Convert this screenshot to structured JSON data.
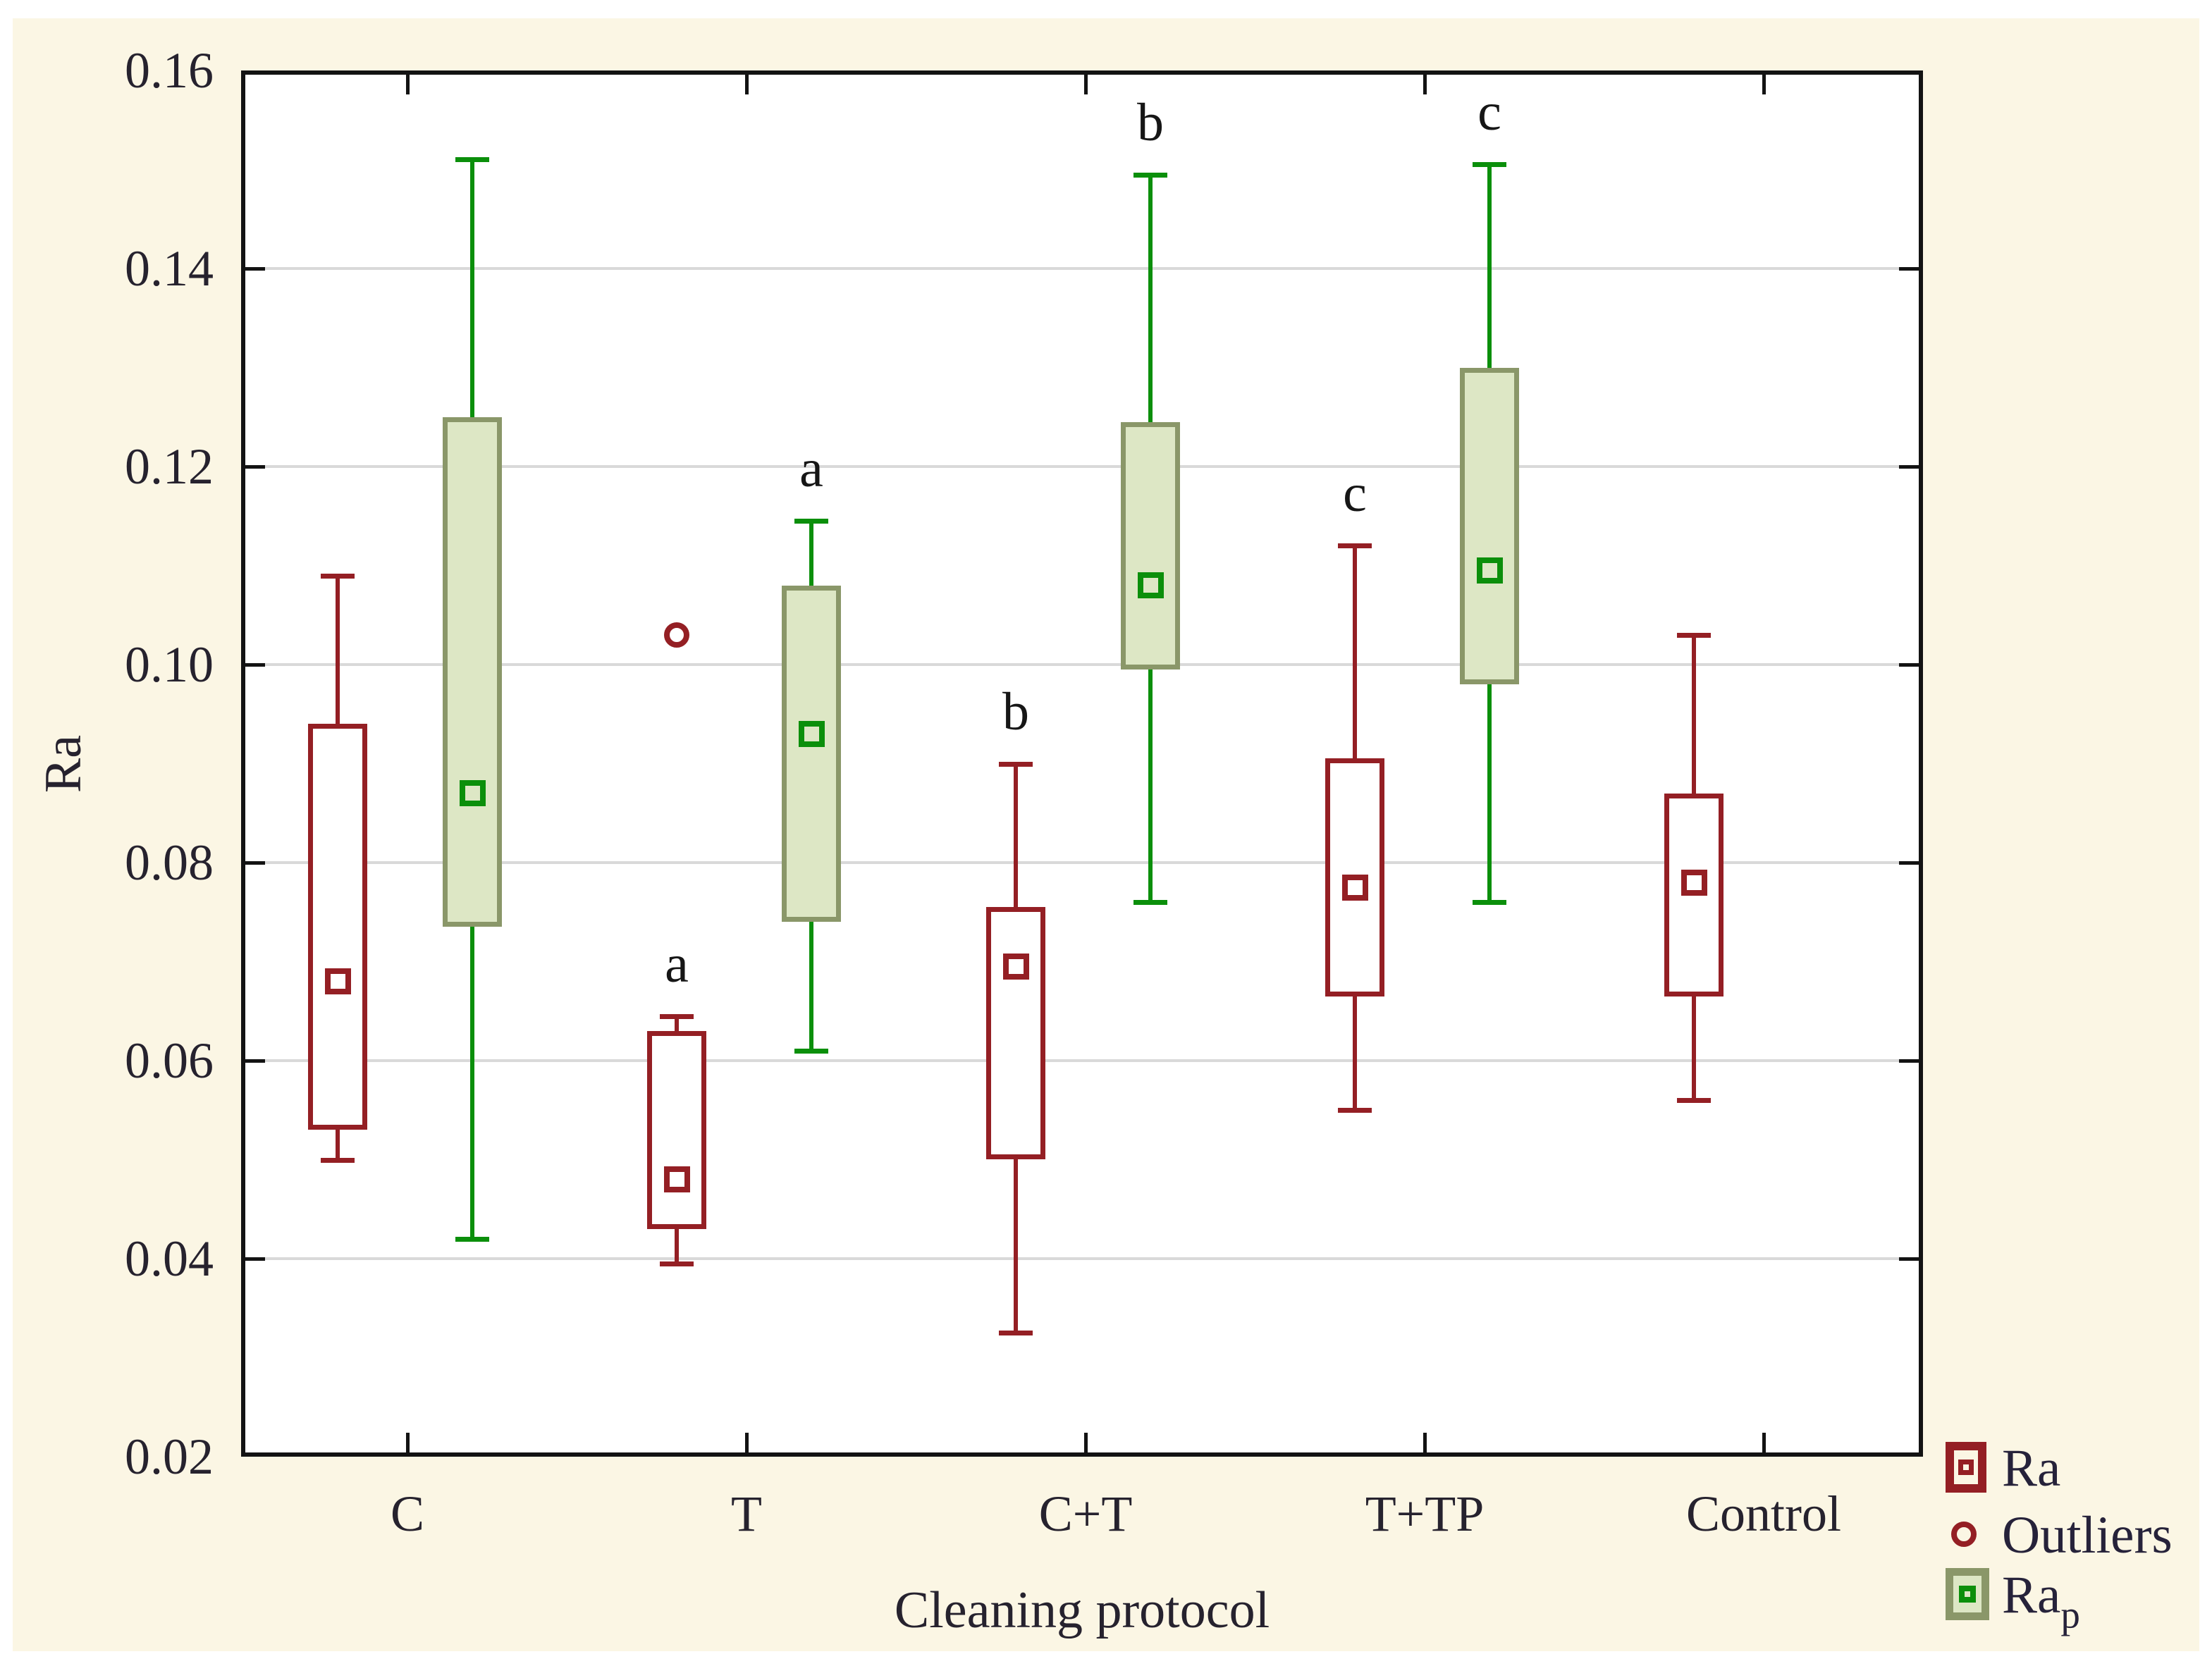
{
  "colors": {
    "maroon": "#941f24",
    "green_line": "#0b8f0b",
    "green_fill": "#dde7c5",
    "green_border": "#8a9769",
    "page_background": "#fbf6e4",
    "plot_background": "#ffffff",
    "gridline": "#d9d9d9",
    "axis_line": "#131313",
    "text": "#26222e",
    "sig_label_text": "#161616"
  },
  "chart_data": {
    "type": "boxplot",
    "title": "",
    "xlabel": "Cleaning protocol",
    "ylabel": "Ra",
    "ylim": [
      0.02,
      0.16
    ],
    "yticks": [
      "0.02",
      "0.04",
      "0.06",
      "0.08",
      "0.10",
      "0.12",
      "0.14",
      "0.16"
    ],
    "grid": "horizontal",
    "legend_position": "bottom-right",
    "categories": [
      "C",
      "T",
      "C+T",
      "T+TP",
      "Control"
    ],
    "series": [
      {
        "name": "Ra",
        "style": "open-maroon",
        "boxes": [
          {
            "category": "C",
            "whisker_low": 0.05,
            "q1": 0.053,
            "median": 0.068,
            "q3": 0.094,
            "whisker_high": 0.109,
            "group_label": ""
          },
          {
            "category": "T",
            "whisker_low": 0.0395,
            "q1": 0.043,
            "median": 0.048,
            "q3": 0.063,
            "whisker_high": 0.0645,
            "group_label": "a"
          },
          {
            "category": "C+T",
            "whisker_low": 0.0325,
            "q1": 0.05,
            "median": 0.0695,
            "q3": 0.0755,
            "whisker_high": 0.09,
            "group_label": "b"
          },
          {
            "category": "T+TP",
            "whisker_low": 0.055,
            "q1": 0.0665,
            "median": 0.0775,
            "q3": 0.0905,
            "whisker_high": 0.112,
            "group_label": "c"
          },
          {
            "category": "Control",
            "whisker_low": 0.056,
            "q1": 0.0665,
            "median": 0.078,
            "q3": 0.087,
            "whisker_high": 0.103,
            "group_label": ""
          }
        ]
      },
      {
        "name": "Rap",
        "style": "filled-green",
        "boxes": [
          {
            "category": "C",
            "whisker_low": 0.042,
            "q1": 0.0735,
            "median": 0.087,
            "q3": 0.125,
            "whisker_high": 0.151,
            "group_label": ""
          },
          {
            "category": "T",
            "whisker_low": 0.061,
            "q1": 0.074,
            "median": 0.093,
            "q3": 0.108,
            "whisker_high": 0.1145,
            "group_label": "a"
          },
          {
            "category": "C+T",
            "whisker_low": 0.076,
            "q1": 0.0995,
            "median": 0.108,
            "q3": 0.1245,
            "whisker_high": 0.1495,
            "group_label": "b"
          },
          {
            "category": "T+TP",
            "whisker_low": 0.076,
            "q1": 0.098,
            "median": 0.1095,
            "q3": 0.13,
            "whisker_high": 0.1505,
            "group_label": "c"
          }
        ]
      }
    ],
    "outliers": [
      {
        "series": "Ra",
        "category": "T",
        "value": 0.103
      }
    ],
    "legend": {
      "items": [
        {
          "label": "Ra",
          "sub": "",
          "marker": "box-maroon"
        },
        {
          "label": "Outliers",
          "sub": "",
          "marker": "circle-maroon"
        },
        {
          "label": "Ra",
          "sub": "p",
          "marker": "box-green"
        }
      ]
    }
  }
}
